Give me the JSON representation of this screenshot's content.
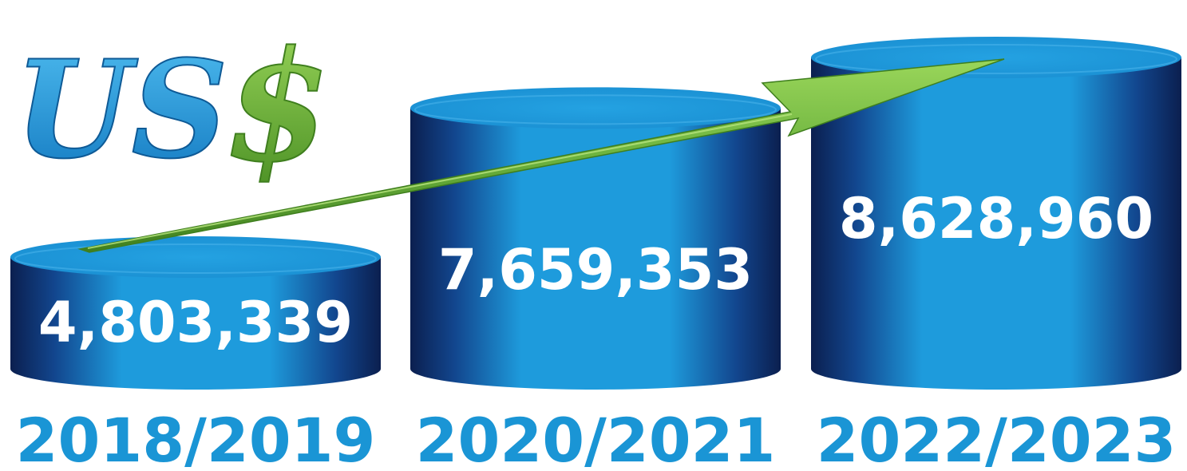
{
  "chart_data": {
    "type": "bar",
    "title": "US$",
    "title_parts": {
      "currency": "US",
      "symbol": "$"
    },
    "categories": [
      "2018/2019",
      "2020/2021",
      "2022/2023"
    ],
    "values": [
      4803339,
      7659353,
      8628960
    ],
    "value_labels": [
      "4,803,339",
      "7,659,353",
      "8,628,960"
    ],
    "ylim": [
      0,
      9000000
    ],
    "grid": false,
    "legend": "none",
    "trend_arrow": true,
    "colors": {
      "bar_light": "#1e9bdc",
      "bar_dark": "#0b1f4f",
      "category_text": "#1a95d5",
      "arrow": "#7cc243",
      "arrow_dark": "#3f7f1e",
      "title_us": "#1e93d3",
      "title_symbol": "#6db33f"
    }
  }
}
